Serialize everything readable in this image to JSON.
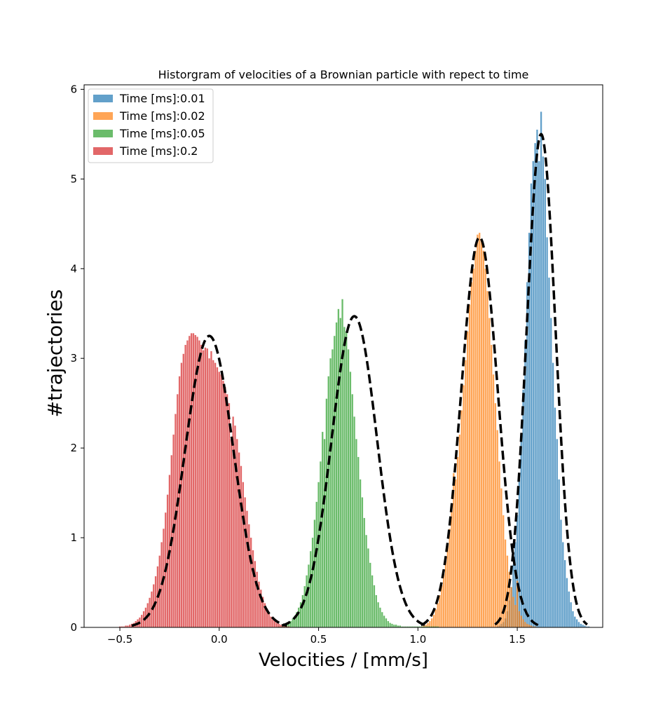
{
  "chart_data": {
    "type": "bar",
    "title": "Historgram of velocities of a Brownian particle with repect to time",
    "xlabel": "Velocities / [mm/s]",
    "ylabel": "#trajectories",
    "xlim": [
      -0.68,
      1.93
    ],
    "ylim": [
      0,
      6.05
    ],
    "xticks": [
      -0.5,
      0.0,
      0.5,
      1.0,
      1.5
    ],
    "xtick_labels": [
      "−0.5",
      "0.0",
      "0.5",
      "1.0",
      "1.5"
    ],
    "yticks": [
      0,
      1,
      2,
      3,
      4,
      5,
      6
    ],
    "ytick_labels": [
      "0",
      "1",
      "2",
      "3",
      "4",
      "5",
      "6"
    ],
    "grid": false,
    "legend_position": "top-left",
    "series": [
      {
        "name": "Time [ms]:0.01",
        "color": "#1f77b4",
        "opacity": 0.7,
        "fit_mean": 1.62,
        "fit_sigma": 0.0725,
        "fit_peak": 5.5,
        "x": [
          1.4,
          1.41,
          1.42,
          1.43,
          1.44,
          1.45,
          1.46,
          1.47,
          1.48,
          1.49,
          1.5,
          1.51,
          1.52,
          1.53,
          1.54,
          1.55,
          1.56,
          1.57,
          1.58,
          1.59,
          1.6,
          1.61,
          1.62,
          1.63,
          1.64,
          1.65,
          1.66,
          1.67,
          1.68,
          1.69,
          1.7,
          1.71,
          1.72,
          1.73,
          1.74,
          1.75,
          1.76,
          1.77,
          1.78,
          1.79,
          1.8,
          1.81,
          1.82,
          1.83,
          1.84,
          1.85,
          1.86
        ],
        "values": [
          0.01,
          0.02,
          0.04,
          0.06,
          0.1,
          0.18,
          0.3,
          0.45,
          0.7,
          0.95,
          1.25,
          1.65,
          2.1,
          2.65,
          3.2,
          3.85,
          4.4,
          4.95,
          5.2,
          5.4,
          5.55,
          5.2,
          5.75,
          5.25,
          5.0,
          4.35,
          3.9,
          3.45,
          2.95,
          2.45,
          2.1,
          1.65,
          1.2,
          0.95,
          0.75,
          0.55,
          0.4,
          0.28,
          0.18,
          0.12,
          0.09,
          0.06,
          0.04,
          0.03,
          0.02,
          0.01,
          0.01
        ]
      },
      {
        "name": "Time [ms]:0.02",
        "color": "#ff7f0e",
        "opacity": 0.7,
        "fit_mean": 1.31,
        "fit_sigma": 0.092,
        "fit_peak": 4.35,
        "x": [
          1.02,
          1.03,
          1.04,
          1.05,
          1.06,
          1.07,
          1.08,
          1.09,
          1.1,
          1.11,
          1.12,
          1.13,
          1.14,
          1.15,
          1.16,
          1.17,
          1.18,
          1.19,
          1.2,
          1.21,
          1.22,
          1.23,
          1.24,
          1.25,
          1.26,
          1.27,
          1.28,
          1.29,
          1.3,
          1.31,
          1.32,
          1.33,
          1.34,
          1.35,
          1.36,
          1.37,
          1.38,
          1.39,
          1.4,
          1.41,
          1.42,
          1.43,
          1.44,
          1.45,
          1.46,
          1.47,
          1.48,
          1.49,
          1.5,
          1.51,
          1.52,
          1.53,
          1.54,
          1.55,
          1.56,
          1.57,
          1.58,
          1.59
        ],
        "values": [
          0.01,
          0.02,
          0.03,
          0.05,
          0.07,
          0.1,
          0.14,
          0.2,
          0.27,
          0.36,
          0.47,
          0.6,
          0.75,
          0.92,
          1.1,
          1.3,
          1.72,
          1.65,
          1.9,
          2.15,
          2.42,
          2.7,
          2.98,
          3.3,
          3.6,
          3.85,
          4.0,
          4.2,
          4.38,
          4.4,
          4.33,
          4.2,
          4.0,
          3.75,
          3.45,
          3.15,
          2.82,
          2.5,
          2.2,
          1.85,
          1.55,
          1.25,
          0.98,
          0.8,
          0.62,
          0.45,
          0.34,
          0.25,
          0.52,
          0.18,
          0.13,
          0.09,
          0.06,
          0.04,
          0.03,
          0.02,
          0.01,
          0.01
        ]
      },
      {
        "name": "Time [ms]:0.05",
        "color": "#2ca02c",
        "opacity": 0.7,
        "fit_mean": 0.68,
        "fit_sigma": 0.114,
        "fit_peak": 3.47,
        "x": [
          0.3,
          0.31,
          0.32,
          0.33,
          0.34,
          0.35,
          0.36,
          0.37,
          0.38,
          0.39,
          0.4,
          0.41,
          0.42,
          0.43,
          0.44,
          0.45,
          0.46,
          0.47,
          0.48,
          0.49,
          0.5,
          0.51,
          0.52,
          0.53,
          0.54,
          0.55,
          0.56,
          0.57,
          0.58,
          0.59,
          0.6,
          0.61,
          0.62,
          0.63,
          0.64,
          0.65,
          0.66,
          0.67,
          0.68,
          0.69,
          0.7,
          0.71,
          0.72,
          0.73,
          0.74,
          0.75,
          0.76,
          0.77,
          0.78,
          0.79,
          0.8,
          0.81,
          0.82,
          0.83,
          0.84,
          0.85,
          0.86,
          0.87,
          0.88,
          0.89,
          0.9,
          0.91,
          0.92,
          0.93,
          0.94,
          0.95,
          0.96,
          0.97,
          0.98,
          0.99,
          1.0,
          1.01,
          1.02,
          1.03,
          1.04,
          1.05,
          1.06,
          1.07,
          1.08,
          1.09,
          1.1
        ],
        "values": [
          0.01,
          0.01,
          0.02,
          0.03,
          0.04,
          0.05,
          0.07,
          0.1,
          0.13,
          0.17,
          0.22,
          0.28,
          0.36,
          0.46,
          0.58,
          0.7,
          0.85,
          1.0,
          1.2,
          1.4,
          1.62,
          1.85,
          2.18,
          2.1,
          2.55,
          2.8,
          3.0,
          3.1,
          3.25,
          3.4,
          3.55,
          3.45,
          3.66,
          3.35,
          3.3,
          3.1,
          2.85,
          2.6,
          2.35,
          2.1,
          1.9,
          1.65,
          1.45,
          1.22,
          1.03,
          0.88,
          0.72,
          0.58,
          0.47,
          0.36,
          0.28,
          0.22,
          0.17,
          0.13,
          0.1,
          0.07,
          0.05,
          0.04,
          0.03,
          0.03,
          0.02,
          0.02,
          0.01,
          0.01,
          0.01,
          0.01,
          0.01,
          0.01,
          0.01,
          0.01,
          0.01,
          0.01,
          0.01,
          0.01,
          0.01,
          0.01,
          0.01,
          0.01,
          0.01,
          0.01,
          0.01
        ]
      },
      {
        "name": "Time [ms]:0.2",
        "color": "#d62728",
        "opacity": 0.7,
        "fit_mean": -0.05,
        "fit_sigma": 0.122,
        "fit_peak": 3.25,
        "x": [
          -0.5,
          -0.49,
          -0.48,
          -0.47,
          -0.46,
          -0.45,
          -0.44,
          -0.43,
          -0.42,
          -0.41,
          -0.4,
          -0.39,
          -0.38,
          -0.37,
          -0.36,
          -0.35,
          -0.34,
          -0.33,
          -0.32,
          -0.31,
          -0.3,
          -0.29,
          -0.28,
          -0.27,
          -0.26,
          -0.25,
          -0.24,
          -0.23,
          -0.22,
          -0.21,
          -0.2,
          -0.19,
          -0.18,
          -0.17,
          -0.16,
          -0.15,
          -0.14,
          -0.13,
          -0.12,
          -0.11,
          -0.1,
          -0.09,
          -0.08,
          -0.07,
          -0.06,
          -0.05,
          -0.04,
          -0.03,
          -0.02,
          -0.01,
          0.0,
          0.01,
          0.02,
          0.03,
          0.04,
          0.05,
          0.06,
          0.07,
          0.08,
          0.09,
          0.1,
          0.11,
          0.12,
          0.13,
          0.14,
          0.15,
          0.16,
          0.17,
          0.18,
          0.19,
          0.2,
          0.21,
          0.22,
          0.23,
          0.24,
          0.25,
          0.26,
          0.27,
          0.28,
          0.29,
          0.3,
          0.31,
          0.32,
          0.33,
          0.34,
          0.35
        ],
        "values": [
          0.01,
          0.01,
          0.01,
          0.02,
          0.02,
          0.03,
          0.04,
          0.05,
          0.07,
          0.09,
          0.11,
          0.14,
          0.18,
          0.22,
          0.27,
          0.33,
          0.4,
          0.48,
          0.57,
          0.68,
          0.8,
          0.95,
          1.1,
          1.28,
          1.48,
          1.7,
          1.92,
          2.15,
          2.38,
          2.6,
          2.8,
          2.95,
          3.05,
          3.15,
          3.2,
          3.25,
          3.28,
          3.28,
          3.26,
          3.24,
          3.2,
          3.15,
          3.09,
          3.12,
          3.11,
          3.0,
          3.08,
          2.98,
          2.95,
          2.9,
          2.85,
          2.82,
          2.75,
          2.68,
          2.6,
          2.5,
          2.1,
          2.35,
          2.25,
          2.1,
          1.95,
          1.8,
          1.62,
          1.45,
          1.3,
          1.15,
          1.0,
          0.86,
          0.74,
          0.62,
          0.51,
          0.42,
          0.34,
          0.27,
          0.21,
          0.16,
          0.12,
          0.09,
          0.07,
          0.05,
          0.04,
          0.03,
          0.02,
          0.02,
          0.01,
          0.01
        ]
      }
    ]
  }
}
